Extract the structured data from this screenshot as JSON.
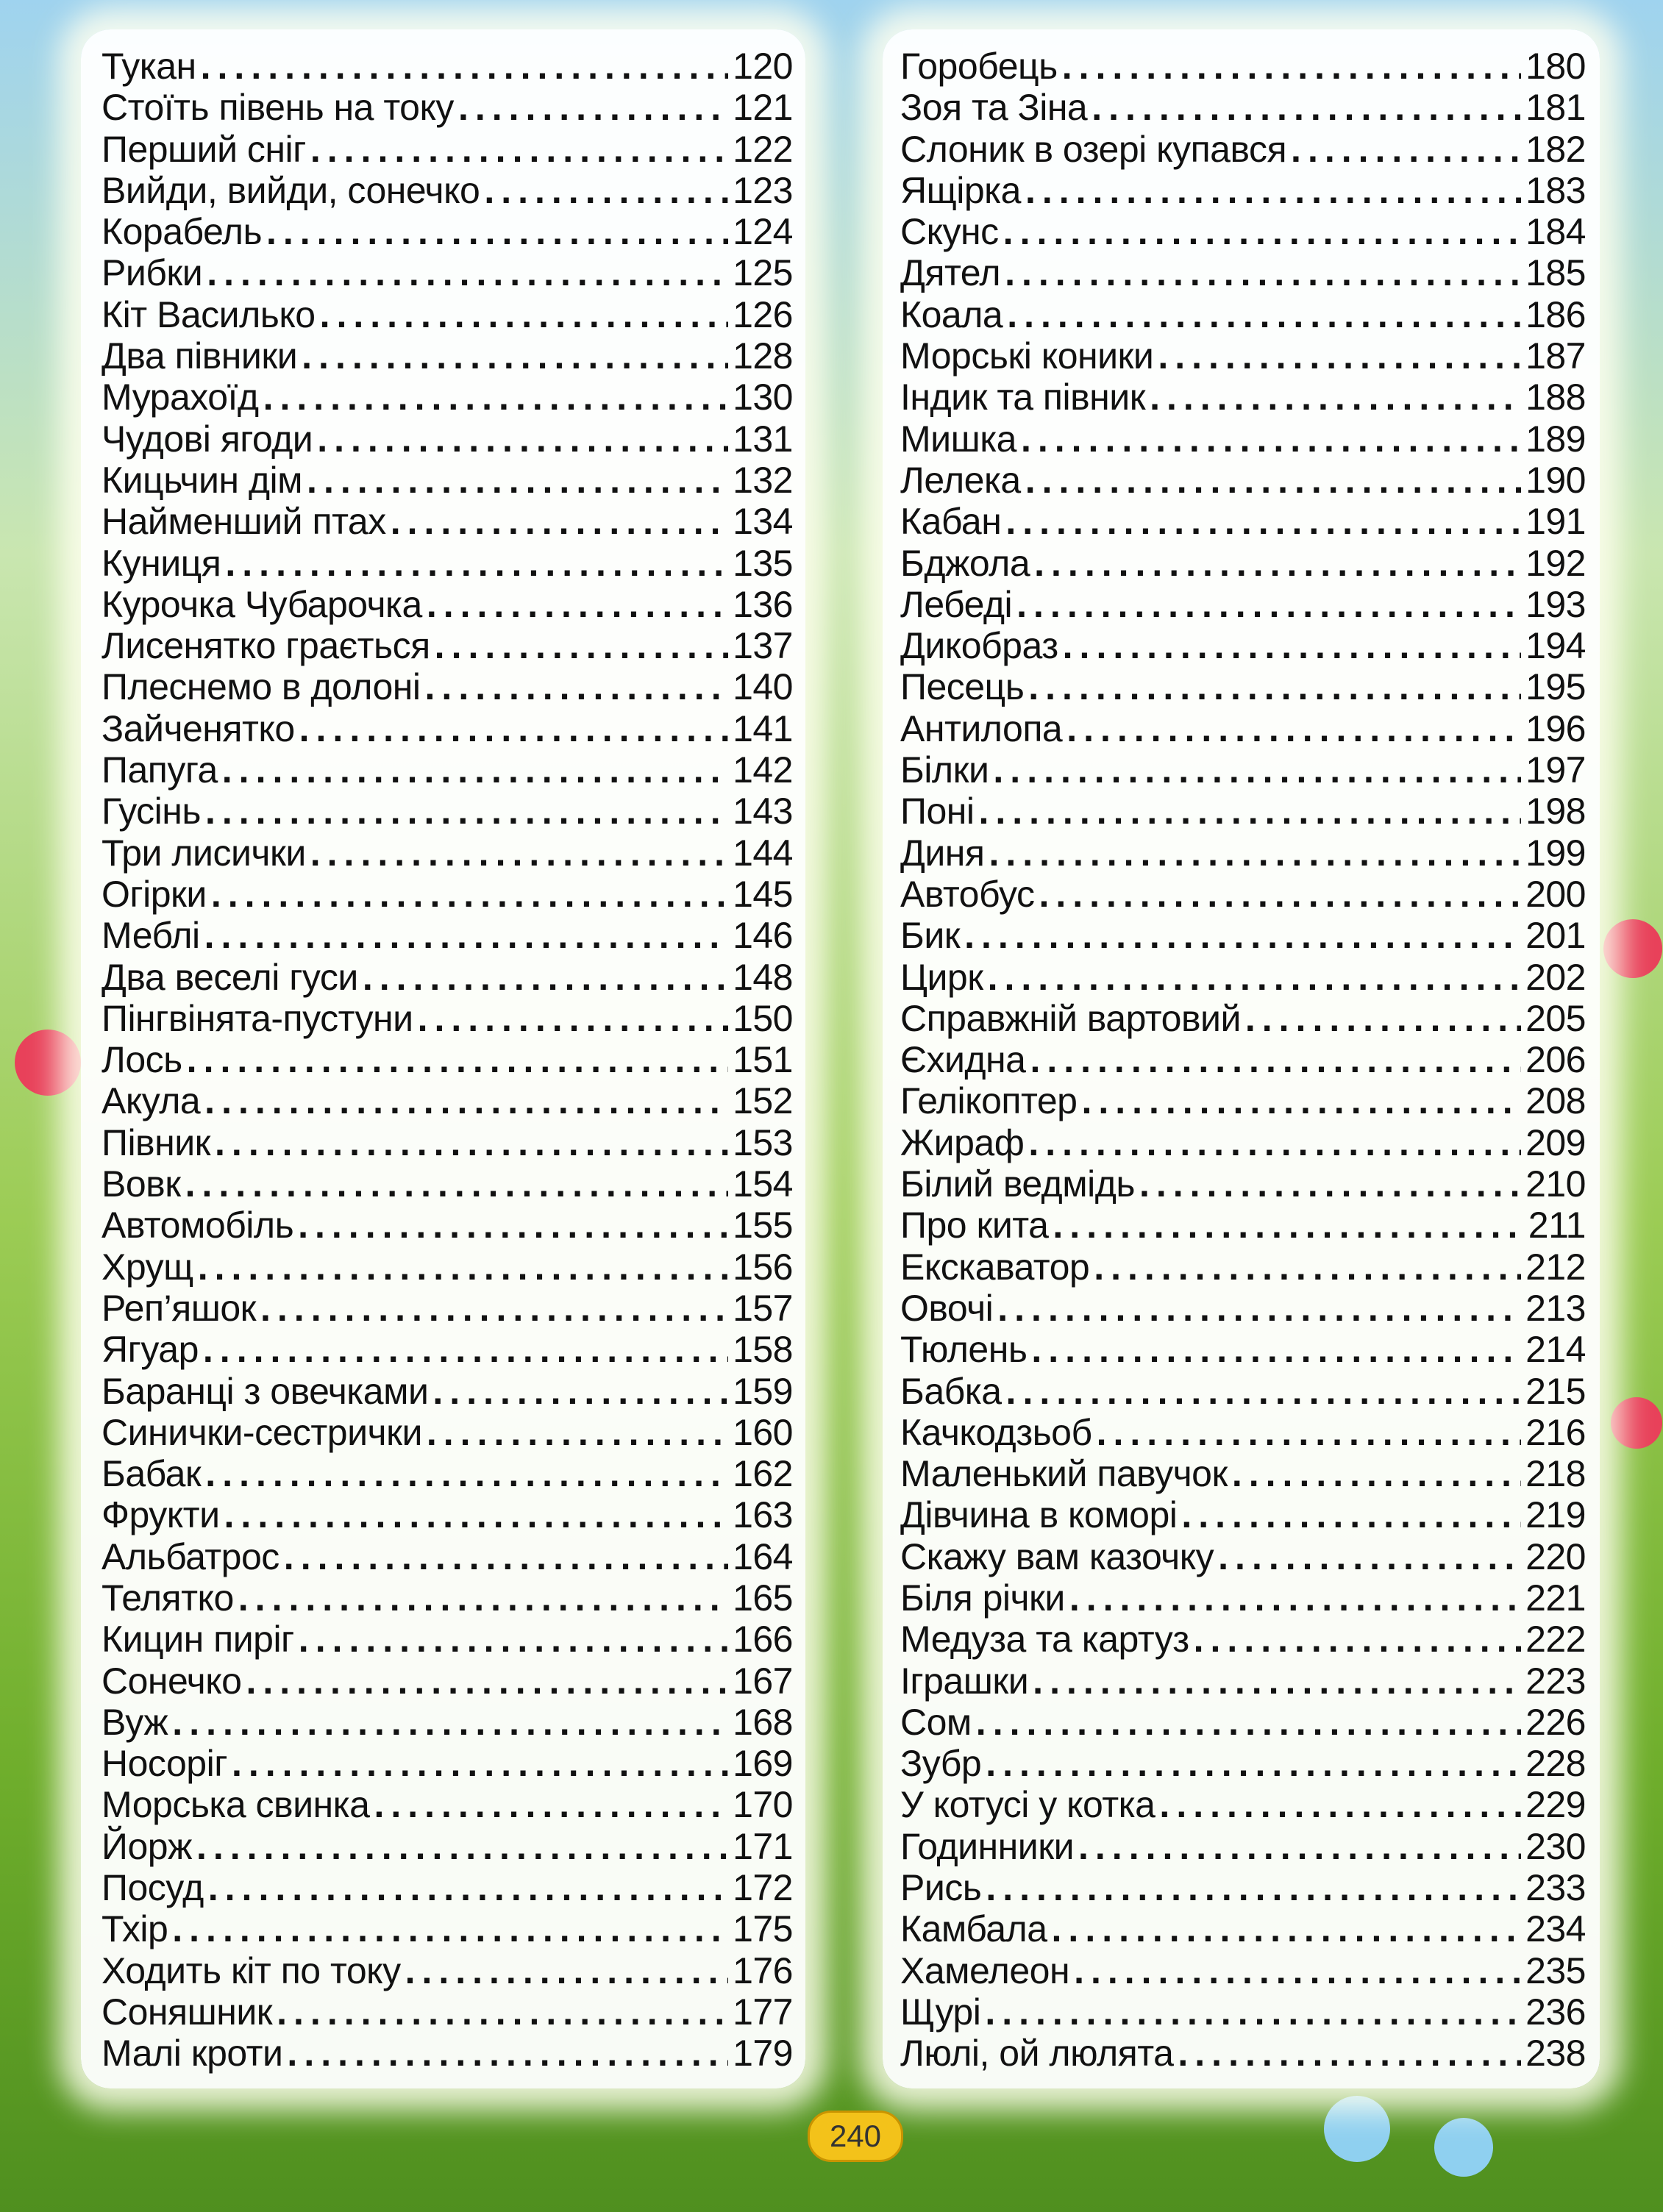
{
  "page_number": "240",
  "colors": {
    "page_badge": "#f3c21a",
    "text": "#111111"
  },
  "toc_left": [
    {
      "title": "Тукан",
      "page": "120"
    },
    {
      "title": "Стоїть півень на току",
      "page": "121"
    },
    {
      "title": "Перший сніг",
      "page": "122"
    },
    {
      "title": "Вийди, вийди, сонечко",
      "page": "123"
    },
    {
      "title": "Корабель",
      "page": "124"
    },
    {
      "title": "Рибки",
      "page": "125"
    },
    {
      "title": "Кіт Василько",
      "page": "126"
    },
    {
      "title": "Два півники",
      "page": "128"
    },
    {
      "title": "Мурахоїд",
      "page": "130"
    },
    {
      "title": "Чудові ягоди",
      "page": "131"
    },
    {
      "title": "Кицьчин дім",
      "page": "132"
    },
    {
      "title": "Найменший птах",
      "page": "134"
    },
    {
      "title": "Куниця",
      "page": "135"
    },
    {
      "title": "Курочка Чубарочка",
      "page": "136"
    },
    {
      "title": "Лисенятко грається",
      "page": "137"
    },
    {
      "title": "Плеснемо в долоні",
      "page": "140"
    },
    {
      "title": "Зайченятко",
      "page": "141"
    },
    {
      "title": "Папуга",
      "page": "142"
    },
    {
      "title": "Гусінь",
      "page": "143"
    },
    {
      "title": "Три лисички",
      "page": "144"
    },
    {
      "title": "Огірки",
      "page": "145"
    },
    {
      "title": "Меблі",
      "page": "146"
    },
    {
      "title": "Два веселі гуси",
      "page": "148"
    },
    {
      "title": "Пінгвінята-пустуни",
      "page": "150"
    },
    {
      "title": "Лось",
      "page": "151"
    },
    {
      "title": "Акула",
      "page": "152"
    },
    {
      "title": "Півник",
      "page": "153"
    },
    {
      "title": "Вовк",
      "page": "154"
    },
    {
      "title": "Автомобіль",
      "page": "155"
    },
    {
      "title": "Хрущ",
      "page": "156"
    },
    {
      "title": "Реп’яшок",
      "page": "157"
    },
    {
      "title": "Ягуар",
      "page": "158"
    },
    {
      "title": "Баранці з овечками",
      "page": "159"
    },
    {
      "title": "Синички-сестрички",
      "page": "160"
    },
    {
      "title": "Бабак",
      "page": "162"
    },
    {
      "title": "Фрукти",
      "page": "163"
    },
    {
      "title": "Альбатрос",
      "page": "164"
    },
    {
      "title": "Телятко",
      "page": "165"
    },
    {
      "title": "Кицин пиріг",
      "page": "166"
    },
    {
      "title": "Сонечко",
      "page": "167"
    },
    {
      "title": "Вуж",
      "page": "168"
    },
    {
      "title": "Носоріг",
      "page": "169"
    },
    {
      "title": "Морська свинка",
      "page": "170"
    },
    {
      "title": "Йорж",
      "page": "171"
    },
    {
      "title": "Посуд",
      "page": "172"
    },
    {
      "title": "Тхір",
      "page": "175"
    },
    {
      "title": "Ходить кіт по току",
      "page": "176"
    },
    {
      "title": "Соняшник",
      "page": "177"
    },
    {
      "title": "Малі кроти",
      "page": "179"
    }
  ],
  "toc_right": [
    {
      "title": "Горобець",
      "page": "180"
    },
    {
      "title": "Зоя та Зіна",
      "page": "181"
    },
    {
      "title": "Слоник в озері купався",
      "page": "182"
    },
    {
      "title": "Ящірка",
      "page": "183"
    },
    {
      "title": "Скунс",
      "page": "184"
    },
    {
      "title": "Дятел",
      "page": "185"
    },
    {
      "title": "Коала",
      "page": "186"
    },
    {
      "title": "Морські коники",
      "page": "187"
    },
    {
      "title": "Індик та півник",
      "page": "188"
    },
    {
      "title": "Мишка",
      "page": "189"
    },
    {
      "title": "Лелека",
      "page": "190"
    },
    {
      "title": "Кабан",
      "page": "191"
    },
    {
      "title": "Бджола",
      "page": "192"
    },
    {
      "title": "Лебеді",
      "page": "193"
    },
    {
      "title": "Дикобраз",
      "page": "194"
    },
    {
      "title": "Песець",
      "page": "195"
    },
    {
      "title": "Антилопа",
      "page": "196"
    },
    {
      "title": "Білки",
      "page": "197"
    },
    {
      "title": "Поні",
      "page": "198"
    },
    {
      "title": "Диня",
      "page": "199"
    },
    {
      "title": "Автобус",
      "page": "200"
    },
    {
      "title": "Бик",
      "page": "201"
    },
    {
      "title": "Цирк",
      "page": "202"
    },
    {
      "title": "Справжній вартовий",
      "page": "205"
    },
    {
      "title": "Єхидна",
      "page": "206"
    },
    {
      "title": "Гелікоптер",
      "page": "208"
    },
    {
      "title": "Жираф",
      "page": "209"
    },
    {
      "title": "Білий ведмідь",
      "page": "210"
    },
    {
      "title": "Про кита",
      "page": "211"
    },
    {
      "title": "Екскаватор",
      "page": "212"
    },
    {
      "title": "Овочі",
      "page": "213"
    },
    {
      "title": "Тюлень",
      "page": "214"
    },
    {
      "title": "Бабка",
      "page": "215"
    },
    {
      "title": "Качкодзьоб",
      "page": "216"
    },
    {
      "title": "Маленький павучок",
      "page": "218"
    },
    {
      "title": "Дівчина в коморі",
      "page": "219"
    },
    {
      "title": "Скажу вам казочку",
      "page": "220"
    },
    {
      "title": "Біля річки",
      "page": "221"
    },
    {
      "title": "Медуза та картуз",
      "page": "222"
    },
    {
      "title": "Іграшки",
      "page": "223"
    },
    {
      "title": "Сом",
      "page": "226"
    },
    {
      "title": "Зубр",
      "page": "228"
    },
    {
      "title": "У котусі у котка",
      "page": "229"
    },
    {
      "title": "Годинники",
      "page": "230"
    },
    {
      "title": "Рись",
      "page": "233"
    },
    {
      "title": "Камбала",
      "page": "234"
    },
    {
      "title": "Хамелеон",
      "page": "235"
    },
    {
      "title": "Щурі",
      "page": "236"
    },
    {
      "title": "Люлі, ой люлята",
      "page": "238"
    }
  ]
}
